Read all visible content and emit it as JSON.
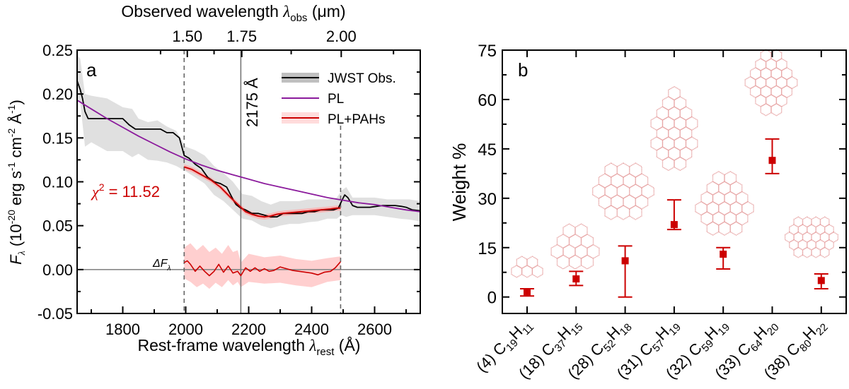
{
  "chart_data": [
    {
      "type": "line",
      "panel_label": "a",
      "title": "",
      "xlabel": "Rest-frame wavelength",
      "xlabel_symbol": "λ",
      "xlabel_sub": "rest",
      "xlabel_unit": "(Å)",
      "ylabel_main": "F",
      "ylabel_sub": "λ",
      "ylabel_unit": "(10",
      "ylabel_exp": "-20",
      "ylabel_rest1": " erg s",
      "ylabel_exp2": "-1",
      "ylabel_rest2": " cm",
      "ylabel_exp3": "-2",
      "ylabel_rest3": " Å",
      "ylabel_exp4": "-1",
      "ylabel_close": ")",
      "top_xlabel": "Observed wavelength",
      "top_xlabel_symbol": "λ",
      "top_xlabel_sub": "obs",
      "top_xlabel_unit": "(μm)",
      "xlim": [
        1655,
        2745
      ],
      "ylim": [
        -0.05,
        0.25
      ],
      "x_ticks": [
        1800,
        2000,
        2200,
        2400,
        2600
      ],
      "x_tick_labels": [
        "1800",
        "2000",
        "2200",
        "2400",
        "2600"
      ],
      "y_ticks": [
        -0.05,
        0.0,
        0.05,
        0.1,
        0.15,
        0.2,
        0.25
      ],
      "y_tick_labels": [
        "-0.05",
        "0.00",
        "0.05",
        "0.10",
        "0.15",
        "0.20",
        "0.25"
      ],
      "top_x_ticks_rest": [
        2005,
        2178,
        2494
      ],
      "top_x_tick_labels": [
        "1.50",
        "1.75",
        "2.00"
      ],
      "vlines": [
        {
          "x": 1995,
          "style": "dashed"
        },
        {
          "x": 2175,
          "style": "solid",
          "label": "2175 Å"
        },
        {
          "x": 2492,
          "style": "dashed"
        }
      ],
      "hline_zero": 0.0,
      "annotation_chi2": "χ² = 11.52",
      "annotation_chi2_symbol": "χ",
      "annotation_chi2_exp": "2",
      "annotation_chi2_value": " = 11.52",
      "annotation_delta": "ΔF",
      "annotation_delta_sub": "λ",
      "legend": [
        {
          "name": "JWST Obs.",
          "color": "#000000",
          "band": "#c8c8c8"
        },
        {
          "name": "PL",
          "color": "#8b1a9c",
          "band": null
        },
        {
          "name": "PL+PAHs",
          "color": "#cc0000",
          "band": "#ffd6d6"
        }
      ],
      "legend_position": "top-right",
      "series": [
        {
          "name": "JWST Obs.",
          "color": "#000000",
          "x": [
            1655,
            1665,
            1672,
            1680,
            1690,
            1700,
            1720,
            1740,
            1760,
            1780,
            1800,
            1820,
            1840,
            1860,
            1880,
            1900,
            1920,
            1940,
            1960,
            1980,
            1995,
            2010,
            2030,
            2050,
            2070,
            2090,
            2110,
            2130,
            2150,
            2160,
            2175,
            2190,
            2210,
            2230,
            2250,
            2270,
            2290,
            2310,
            2330,
            2350,
            2370,
            2390,
            2410,
            2430,
            2450,
            2470,
            2485,
            2495,
            2505,
            2515,
            2530,
            2545,
            2565,
            2585,
            2605,
            2625,
            2645,
            2665,
            2685,
            2700,
            2720,
            2745
          ],
          "y": [
            0.215,
            0.205,
            0.195,
            0.18,
            0.172,
            0.172,
            0.172,
            0.172,
            0.172,
            0.172,
            0.172,
            0.165,
            0.16,
            0.16,
            0.16,
            0.16,
            0.16,
            0.156,
            0.156,
            0.15,
            0.13,
            0.127,
            0.12,
            0.115,
            0.105,
            0.1,
            0.098,
            0.094,
            0.08,
            0.074,
            0.07,
            0.068,
            0.064,
            0.064,
            0.062,
            0.06,
            0.06,
            0.064,
            0.064,
            0.064,
            0.064,
            0.066,
            0.066,
            0.068,
            0.068,
            0.068,
            0.07,
            0.078,
            0.085,
            0.082,
            0.073,
            0.071,
            0.071,
            0.071,
            0.072,
            0.073,
            0.073,
            0.073,
            0.072,
            0.071,
            0.068,
            0.067
          ]
        },
        {
          "name": "JWST Obs. band upper",
          "x": [
            1655,
            1665,
            1680,
            1700,
            1750,
            1800,
            1830,
            1850,
            1880,
            1910,
            1940,
            1970,
            2000,
            2030,
            2060,
            2090,
            2120,
            2150,
            2180,
            2210,
            2240,
            2270,
            2300,
            2330,
            2360,
            2390,
            2420,
            2450,
            2480,
            2495,
            2510,
            2530,
            2560,
            2600,
            2640,
            2680,
            2710,
            2745
          ],
          "y": [
            0.245,
            0.24,
            0.2,
            0.198,
            0.195,
            0.185,
            0.183,
            0.172,
            0.168,
            0.17,
            0.163,
            0.158,
            0.14,
            0.136,
            0.13,
            0.118,
            0.11,
            0.1,
            0.086,
            0.084,
            0.078,
            0.074,
            0.078,
            0.078,
            0.078,
            0.08,
            0.08,
            0.08,
            0.082,
            0.09,
            0.094,
            0.082,
            0.082,
            0.082,
            0.08,
            0.08,
            0.08,
            0.078
          ]
        },
        {
          "name": "JWST Obs. band lower",
          "x": [
            1655,
            1665,
            1680,
            1700,
            1750,
            1800,
            1830,
            1850,
            1880,
            1910,
            1940,
            1970,
            2000,
            2030,
            2060,
            2090,
            2120,
            2150,
            2180,
            2210,
            2240,
            2270,
            2300,
            2330,
            2360,
            2390,
            2420,
            2450,
            2480,
            2495,
            2510,
            2530,
            2560,
            2600,
            2640,
            2680,
            2710,
            2745
          ],
          "y": [
            0.195,
            0.19,
            0.14,
            0.145,
            0.135,
            0.135,
            0.128,
            0.132,
            0.125,
            0.124,
            0.122,
            0.118,
            0.112,
            0.105,
            0.098,
            0.085,
            0.078,
            0.068,
            0.058,
            0.056,
            0.05,
            0.047,
            0.05,
            0.052,
            0.052,
            0.054,
            0.055,
            0.058,
            0.058,
            0.062,
            0.06,
            0.062,
            0.062,
            0.062,
            0.06,
            0.058,
            0.057,
            0.055
          ]
        },
        {
          "name": "PL",
          "color": "#8b1a9c",
          "x": [
            1655,
            1700,
            1750,
            1800,
            1850,
            1900,
            1950,
            2000,
            2050,
            2100,
            2150,
            2200,
            2250,
            2300,
            2350,
            2400,
            2450,
            2500,
            2550,
            2600,
            2650,
            2700,
            2745
          ],
          "y": [
            0.193,
            0.183,
            0.172,
            0.162,
            0.152,
            0.143,
            0.134,
            0.126,
            0.119,
            0.113,
            0.108,
            0.103,
            0.098,
            0.094,
            0.09,
            0.086,
            0.082,
            0.079,
            0.076,
            0.074,
            0.071,
            0.068,
            0.066
          ]
        },
        {
          "name": "PL+PAHs",
          "color": "#cc0000",
          "x": [
            1995,
            2020,
            2050,
            2080,
            2110,
            2140,
            2160,
            2175,
            2190,
            2210,
            2230,
            2250,
            2270,
            2290,
            2310,
            2340,
            2370,
            2400,
            2430,
            2460,
            2480,
            2492
          ],
          "y": [
            0.117,
            0.114,
            0.108,
            0.102,
            0.094,
            0.083,
            0.076,
            0.071,
            0.066,
            0.063,
            0.061,
            0.06,
            0.061,
            0.063,
            0.064,
            0.065,
            0.066,
            0.067,
            0.068,
            0.069,
            0.07,
            0.07
          ]
        },
        {
          "name": "ΔF residual",
          "color": "#cc0000",
          "x": [
            1995,
            2005,
            2015,
            2030,
            2045,
            2060,
            2075,
            2090,
            2105,
            2120,
            2135,
            2150,
            2165,
            2175,
            2190,
            2205,
            2220,
            2235,
            2250,
            2265,
            2280,
            2300,
            2320,
            2340,
            2360,
            2380,
            2400,
            2420,
            2440,
            2460,
            2475,
            2492
          ],
          "y": [
            0.008,
            0.01,
            0.006,
            -0.002,
            0.004,
            -0.002,
            -0.007,
            -0.002,
            0.006,
            -0.003,
            0.004,
            -0.004,
            -0.002,
            -0.007,
            0.002,
            -0.002,
            0.002,
            -0.002,
            0.001,
            -0.002,
            -0.001,
            0.003,
            0.001,
            -0.001,
            -0.002,
            -0.003,
            -0.004,
            -0.006,
            -0.003,
            -0.002,
            0.002,
            0.009
          ]
        },
        {
          "name": "ΔF band upper",
          "x": [
            1995,
            2015,
            2035,
            2055,
            2075,
            2095,
            2115,
            2135,
            2150,
            2165,
            2175,
            2200,
            2250,
            2300,
            2350,
            2400,
            2450,
            2492
          ],
          "y": [
            0.025,
            0.03,
            0.022,
            0.028,
            0.02,
            0.025,
            0.018,
            0.028,
            0.02,
            0.022,
            0.008,
            0.018,
            0.014,
            0.016,
            0.012,
            0.01,
            0.013,
            0.015
          ]
        },
        {
          "name": "ΔF band lower",
          "x": [
            1995,
            2015,
            2035,
            2055,
            2075,
            2095,
            2115,
            2135,
            2150,
            2165,
            2175,
            2200,
            2250,
            2300,
            2350,
            2400,
            2450,
            2492
          ],
          "y": [
            -0.01,
            -0.014,
            -0.02,
            -0.016,
            -0.022,
            -0.015,
            -0.02,
            -0.012,
            -0.018,
            -0.014,
            -0.02,
            -0.014,
            -0.016,
            -0.015,
            -0.018,
            -0.02,
            -0.014,
            -0.012
          ]
        }
      ]
    },
    {
      "type": "scatter",
      "panel_label": "b",
      "title": "",
      "xlabel": "",
      "ylabel": "Weight %",
      "ylim": [
        -5,
        75
      ],
      "y_ticks": [
        0,
        15,
        30,
        45,
        60,
        75
      ],
      "y_tick_labels": [
        "0",
        "15",
        "30",
        "45",
        "60",
        "75"
      ],
      "categories": [
        {
          "id": "(4)",
          "c": "19",
          "h": "11"
        },
        {
          "id": "(18)",
          "c": "37",
          "h": "15"
        },
        {
          "id": "(28)",
          "c": "52",
          "h": "18"
        },
        {
          "id": "(31)",
          "c": "57",
          "h": "19"
        },
        {
          "id": "(32)",
          "c": "59",
          "h": "19"
        },
        {
          "id": "(33)",
          "c": "64",
          "h": "20"
        },
        {
          "id": "(38)",
          "c": "80",
          "h": "22"
        }
      ],
      "values": [
        1.5,
        5.5,
        11.0,
        22.0,
        13.0,
        41.5,
        5.0
      ],
      "err_low": [
        0.3,
        3.5,
        0.0,
        20.5,
        8.5,
        37.5,
        2.5
      ],
      "err_high": [
        2.5,
        7.8,
        15.5,
        29.5,
        15.0,
        48.0,
        7.0
      ],
      "marker_color": "#cc0000",
      "structure_color": "#e8a0a0",
      "structure_rings": [
        4,
        10,
        19,
        19,
        19,
        24,
        37
      ]
    }
  ]
}
